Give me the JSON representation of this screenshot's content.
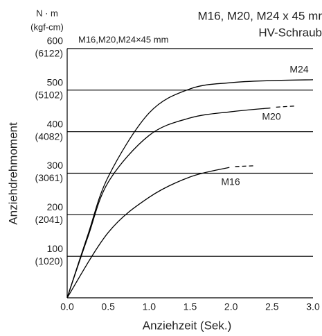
{
  "chart_data": {
    "type": "line",
    "title": "M16, M20, M24 x 45 mr",
    "title_line2": "HV-Schraub",
    "subtitle": "M16,M20,M24×45 mm",
    "y_unit": "N · m",
    "y_unit_secondary": "(kgf-cm)",
    "y_label": "Anziehdrehmoment",
    "x_label": "Anziehzeit (Sek.)",
    "xlim": [
      0,
      3
    ],
    "ylim": [
      0,
      600
    ],
    "xticks": [
      {
        "value": 0,
        "label": "0.0"
      },
      {
        "value": 0.5,
        "label": "0.5"
      },
      {
        "value": 1,
        "label": "1.0"
      },
      {
        "value": 1.5,
        "label": "1.5"
      },
      {
        "value": 2,
        "label": "2.0"
      },
      {
        "value": 2.5,
        "label": "2.5"
      },
      {
        "value": 3,
        "label": "3.0"
      }
    ],
    "yticks": [
      100,
      200,
      300,
      400,
      500,
      600
    ],
    "yticks_secondary": [
      {
        "value": 100,
        "label": "(1020)"
      },
      {
        "value": 200,
        "label": "(2041)"
      },
      {
        "value": 300,
        "label": "(3061)"
      },
      {
        "value": 400,
        "label": "(4082)"
      },
      {
        "value": 500,
        "label": "(5102)"
      },
      {
        "value": 600,
        "label": "(6122)"
      }
    ],
    "grid": true,
    "series": [
      {
        "name": "M24",
        "color": "#000000",
        "x": [
          0,
          0.25,
          0.5,
          1.0,
          1.5,
          2.0,
          2.5,
          3.0
        ],
        "values": [
          0,
          150,
          291,
          445,
          503,
          518,
          523,
          525
        ]
      },
      {
        "name": "M20",
        "color": "#000000",
        "x": [
          0,
          0.25,
          0.5,
          1.0,
          1.5,
          2.0,
          2.48
        ],
        "values": [
          0,
          145,
          278,
          391,
          433,
          448,
          457
        ],
        "ext_x": [
          2.55,
          2.8
        ],
        "ext_values": [
          459,
          462
        ]
      },
      {
        "name": "M16",
        "color": "#000000",
        "x": [
          0,
          0.5,
          1.0,
          1.5,
          1.98
        ],
        "values": [
          0,
          157,
          242,
          291,
          314
        ],
        "ext_x": [
          2.05,
          2.3
        ],
        "ext_values": [
          316,
          318
        ]
      }
    ]
  }
}
